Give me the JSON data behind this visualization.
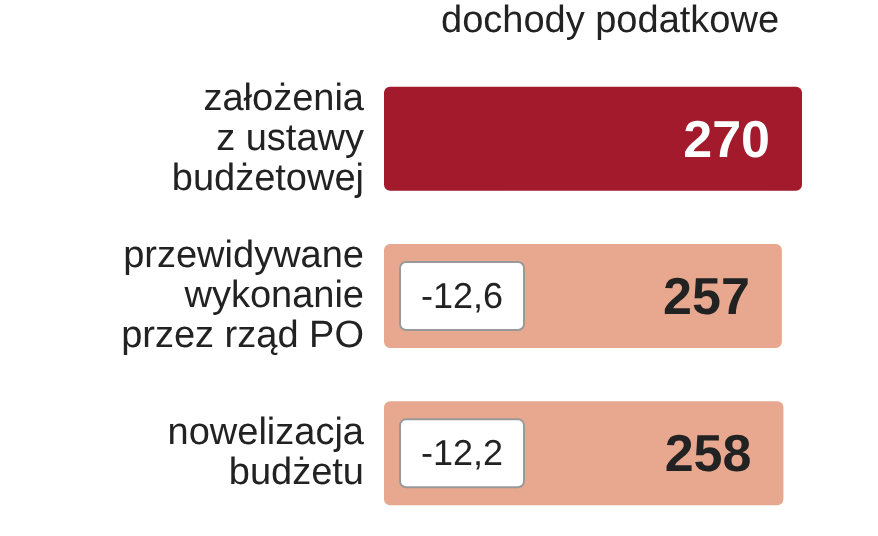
{
  "chart_data": {
    "type": "bar",
    "orientation": "horizontal",
    "title": "dochody podatkowe",
    "categories": [
      "założenia\nz ustawy\nbudżetowej",
      "przewidywane\nwykonanie\nprzez rząd PO",
      "nowelizacja\nbudżetu"
    ],
    "values": [
      270,
      257,
      258
    ],
    "colors": [
      "#a31a2c",
      "#e8a890",
      "#e8a890"
    ],
    "data_labels": true,
    "annotations": [
      "-12,6",
      "-12,2"
    ]
  }
}
